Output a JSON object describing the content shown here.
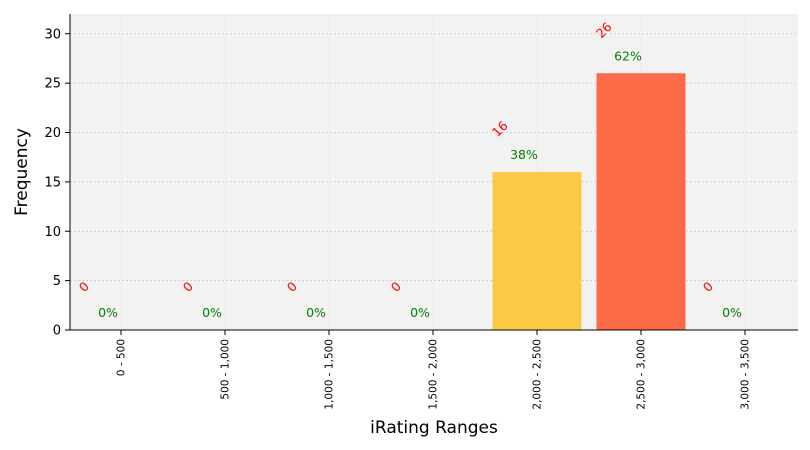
{
  "chart_data": {
    "type": "bar",
    "title": "",
    "xlabel": "iRating Ranges",
    "ylabel": "Frequency",
    "categories": [
      "0 - 500",
      "500 - 1,000",
      "1,000 - 1,500",
      "1,500 - 2,000",
      "2,000 - 2,500",
      "2,500 - 3,000",
      "3,000 - 3,500"
    ],
    "values": [
      0,
      0,
      0,
      0,
      16,
      26,
      0
    ],
    "count_labels": [
      "0",
      "0",
      "0",
      "0",
      "16",
      "26",
      "0"
    ],
    "percent_labels": [
      "0%",
      "0%",
      "0%",
      "0%",
      "38%",
      "62%",
      "0%"
    ],
    "bar_colors": [
      "#e8e8e8",
      "#e8e8e8",
      "#e8e8e8",
      "#e8e8e8",
      "#fcc947",
      "#fd6a47",
      "#e8e8e8"
    ],
    "count_label_color": "#ff0000",
    "percent_label_color": "#008000",
    "background_color": "#f2f2f2",
    "ylim": [
      0,
      32
    ],
    "yticks": [
      0,
      5,
      10,
      15,
      20,
      25,
      30
    ],
    "grid": true
  }
}
